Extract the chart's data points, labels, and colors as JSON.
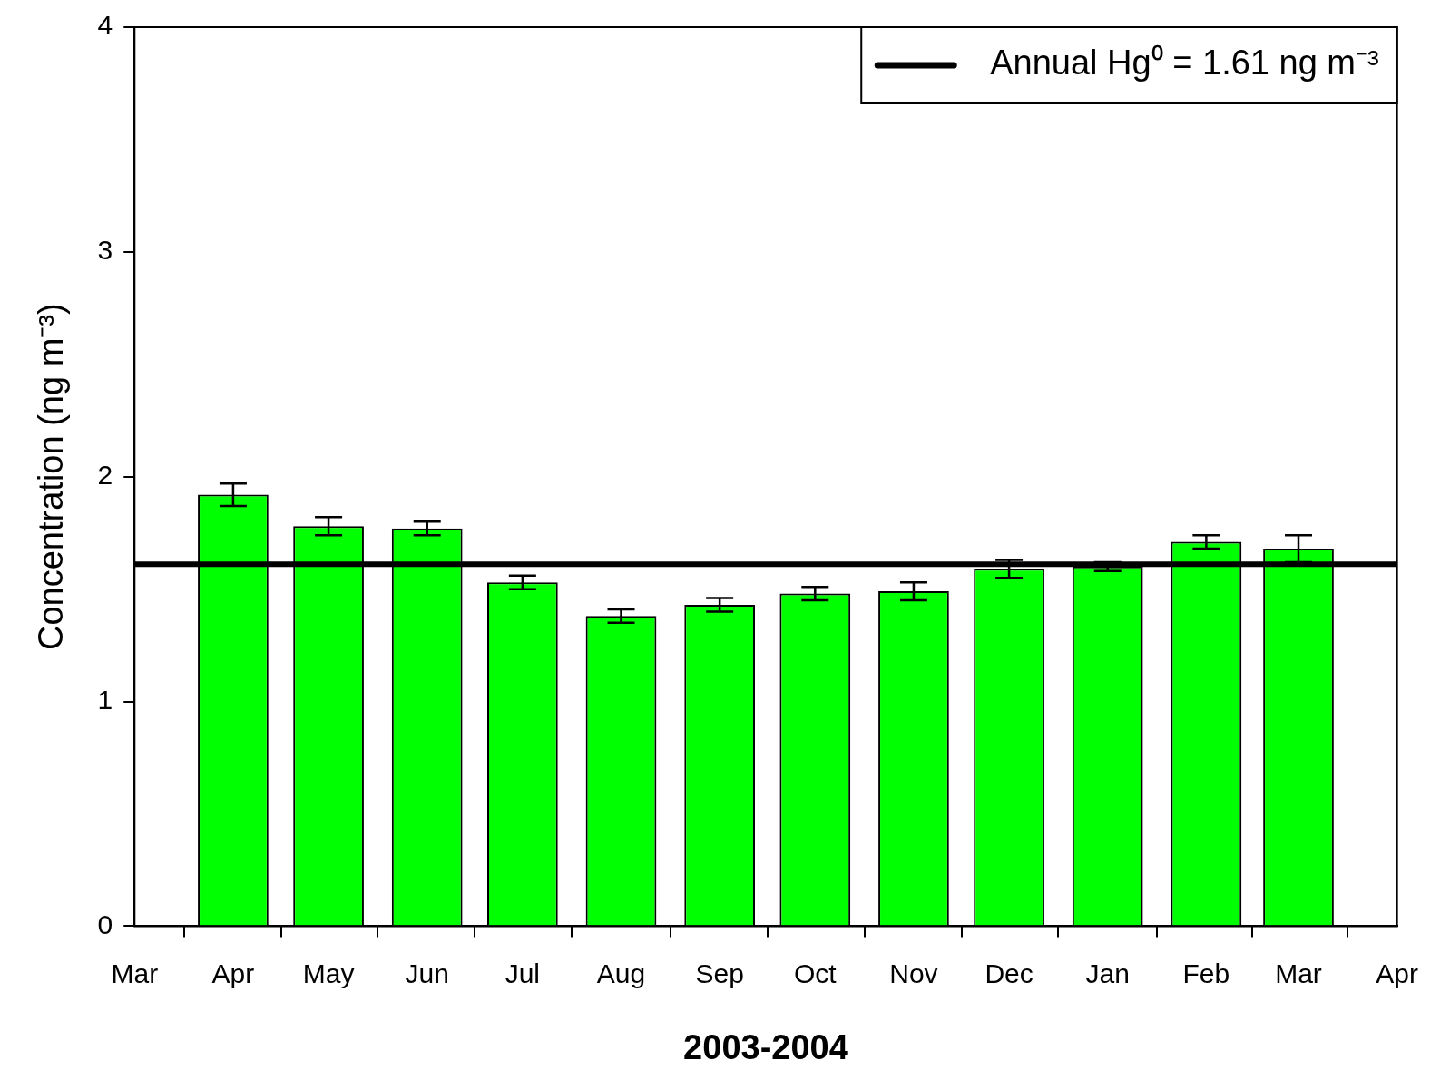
{
  "chart_data": {
    "type": "bar",
    "xlabel": "2003-2004",
    "ylabel": "Concentration (ng m⁻³)",
    "x": [
      "2003-04",
      "2003-05",
      "2003-06",
      "2003-07",
      "2003-08",
      "2003-09",
      "2003-10",
      "2003-11",
      "2003-12",
      "2004-01",
      "2004-02",
      "2004-03"
    ],
    "values": [
      1.92,
      1.78,
      1.77,
      1.53,
      1.38,
      1.43,
      1.48,
      1.49,
      1.59,
      1.6,
      1.71,
      1.68
    ],
    "errors": [
      0.05,
      0.04,
      0.03,
      0.03,
      0.03,
      0.03,
      0.03,
      0.04,
      0.04,
      0.02,
      0.03,
      0.06
    ],
    "color": "#00ff00",
    "xlim": [
      "2003-03",
      "2004-04"
    ],
    "xticks": [
      {
        "value": "2003-03",
        "label": "Mar"
      },
      {
        "value": "2003-04",
        "label": "Apr"
      },
      {
        "value": "2003-05",
        "label": "May"
      },
      {
        "value": "2003-06",
        "label": "Jun"
      },
      {
        "value": "2003-07",
        "label": "Jul"
      },
      {
        "value": "2003-08",
        "label": "Aug"
      },
      {
        "value": "2003-09",
        "label": "Sep"
      },
      {
        "value": "2003-10",
        "label": "Oct"
      },
      {
        "value": "2003-11",
        "label": "Nov"
      },
      {
        "value": "2003-12",
        "label": "Dec"
      },
      {
        "value": "2004-01",
        "label": "Jan"
      },
      {
        "value": "2004-02",
        "label": "Feb"
      },
      {
        "value": "2004-03",
        "label": "Mar"
      },
      {
        "value": "2004-04",
        "label": "Apr"
      }
    ],
    "ylim": [
      0,
      4
    ],
    "yticks": [
      0,
      1,
      2,
      3,
      4
    ],
    "ref_lines": [
      {
        "axis": "y",
        "value": 1.61,
        "label": "Annual Hg⁰ = 1.61 ng m⁻³",
        "color": "#000000"
      }
    ],
    "legend": "top right"
  }
}
